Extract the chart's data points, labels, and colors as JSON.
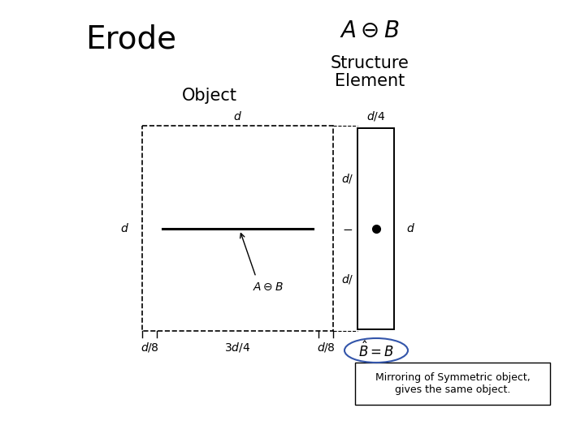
{
  "title_erode": "Erode",
  "title_formula": "$A \\ominus B$",
  "label_object": "Object",
  "label_structure_1": "Structure",
  "label_structure_2": "Element",
  "label_d_top": "$d$",
  "label_d_left": "$d$",
  "label_d4_top": "$d/4$",
  "label_d_right_se": "$d$",
  "label_d_slash_top": "$d/$",
  "label_d_slash_bot": "$d/$",
  "label_dash": "$-$",
  "label_d8_left": "$d/8$",
  "label_3d4_mid": "$3d/4$",
  "label_d8_right": "$d/8$",
  "label_aob": "$A \\ominus B$",
  "label_bhat": "$\\hat{B} = B$",
  "note_text": "Mirroring of Symmetric object,\ngives the same object.",
  "bg_color": "#ffffff",
  "erode_fontsize": 28,
  "formula_fontsize": 20,
  "header_fontsize": 15,
  "dim_fontsize": 10,
  "note_fontsize": 9,
  "ellipse_color": "#3355aa"
}
